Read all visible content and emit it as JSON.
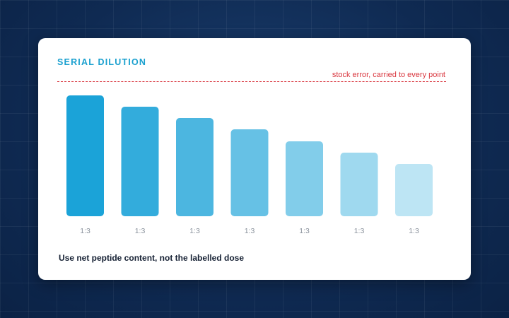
{
  "card": {
    "title": "SERIAL DILUTION",
    "error_line_label": "stock error, carried to every point",
    "footnote": "Use net peptide content, not the labelled dose"
  },
  "colors": {
    "background": "#0f2a52",
    "title": "#1aa0cf",
    "error": "#d9363e",
    "bars": [
      "#1ba3d8",
      "#33acdc",
      "#4cb6e0",
      "#66c1e5",
      "#82cdea",
      "#9fd9ef",
      "#bde5f4"
    ]
  },
  "chart_data": {
    "type": "bar",
    "categories": [
      "1:3",
      "1:3",
      "1:3",
      "1:3",
      "1:3",
      "1:3",
      "1:3"
    ],
    "values": [
      171,
      155,
      139,
      123,
      106,
      90,
      74
    ],
    "reference_line": {
      "value": 190,
      "label": "stock error, carried to every point"
    },
    "ylim": [
      0,
      190
    ],
    "grid": false,
    "legend": "none"
  }
}
